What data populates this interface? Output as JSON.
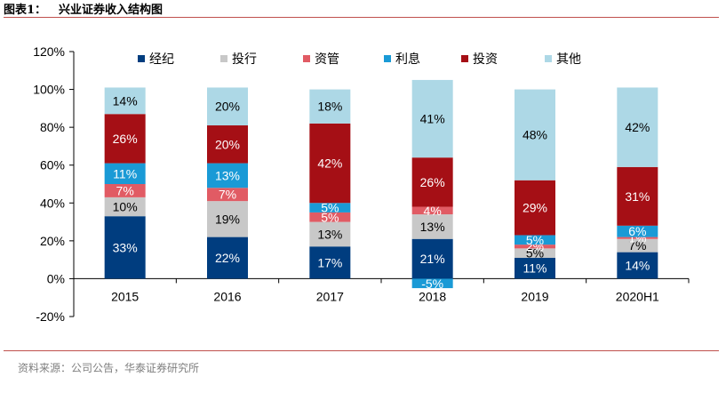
{
  "header": {
    "label": "图表1：",
    "title": "兴业证券收入结构图"
  },
  "source": "资料来源：公司公告，华泰证券研究所",
  "colors": {
    "经纪": "#003d7f",
    "投行": "#c8c8c8",
    "资管": "#e15b64",
    "利息": "#1a9ad6",
    "投资": "#a50f15",
    "其他": "#add8e6",
    "rule": "#c0504d"
  },
  "chart_data": {
    "type": "bar",
    "stacked": true,
    "categories": [
      "2015",
      "2016",
      "2017",
      "2018",
      "2019",
      "2020H1"
    ],
    "series": [
      {
        "name": "经纪",
        "values": [
          33,
          22,
          17,
          21,
          11,
          14
        ]
      },
      {
        "name": "投行",
        "values": [
          10,
          19,
          13,
          13,
          5,
          7
        ]
      },
      {
        "name": "资管",
        "values": [
          7,
          7,
          5,
          4,
          2,
          1
        ]
      },
      {
        "name": "利息",
        "values": [
          11,
          13,
          5,
          -5,
          5,
          6
        ]
      },
      {
        "name": "投资",
        "values": [
          26,
          20,
          42,
          26,
          29,
          31
        ]
      },
      {
        "name": "其他",
        "values": [
          14,
          20,
          18,
          41,
          48,
          42
        ]
      }
    ],
    "ylim": [
      -20,
      120
    ],
    "yticks": [
      "-20%",
      "0%",
      "20%",
      "40%",
      "60%",
      "80%",
      "100%",
      "120%"
    ],
    "ytick_values": [
      -20,
      0,
      20,
      40,
      60,
      80,
      100,
      120
    ],
    "legend_position": "top",
    "grid": false,
    "value_suffix": "%"
  }
}
